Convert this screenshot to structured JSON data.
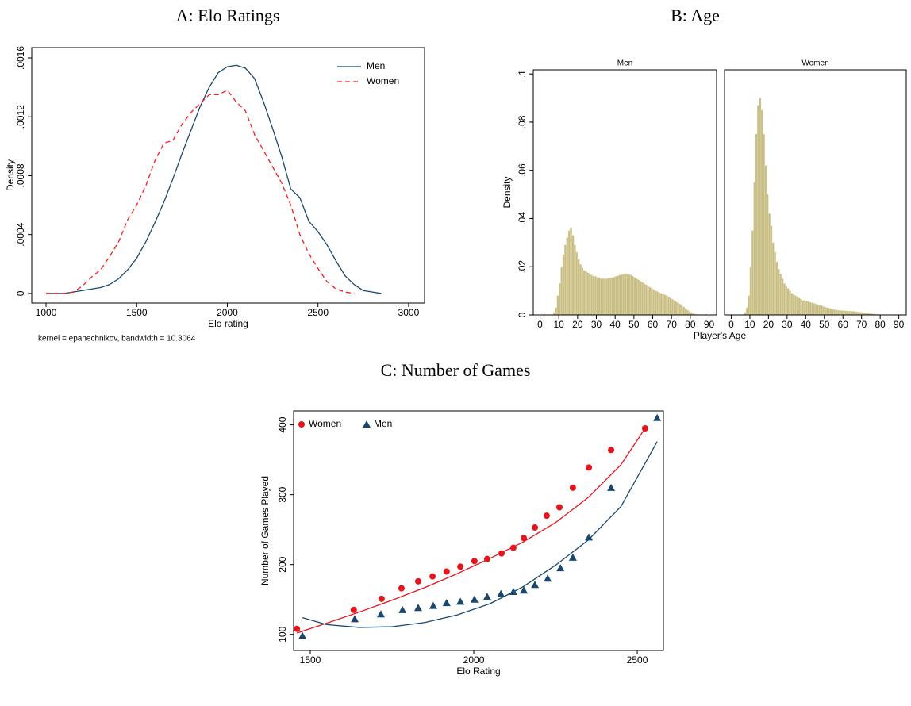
{
  "chart_data": [
    {
      "type": "line",
      "title": "A: Elo Ratings",
      "xlabel": "Elo rating",
      "ylabel": "Density",
      "note": "kernel = epanechnikov, bandwidth = 10.3064",
      "legend": "top-right",
      "xlim": [
        921,
        3088
      ],
      "xticks": [
        1000,
        1500,
        2000,
        2500,
        3000
      ],
      "ylim": [
        -6.5e-05,
        0.00167
      ],
      "yticks": [
        0,
        {
          "value": 0.0004,
          "label": ".0004"
        },
        {
          "value": 0.0008,
          "label": ".0008"
        },
        {
          "value": 0.0012,
          "label": ".0012"
        },
        {
          "value": 0.0016,
          "label": ".0016"
        }
      ],
      "x": [
        1000,
        1050,
        1100,
        1150,
        1200,
        1250,
        1300,
        1350,
        1400,
        1450,
        1500,
        1550,
        1600,
        1650,
        1700,
        1750,
        1800,
        1850,
        1900,
        1950,
        2000,
        2050,
        2100,
        2150,
        2200,
        2250,
        2300,
        2350,
        2400,
        2450,
        2500,
        2550,
        2600,
        2650,
        2700,
        2750,
        2800,
        2850
      ],
      "series": [
        {
          "name": "Men",
          "color": "#1a476f",
          "line_style": "solid",
          "values": [
            0,
            0,
            0,
            1e-05,
            2e-05,
            3e-05,
            4e-05,
            6e-05,
            0.0001,
            0.00016,
            0.00024,
            0.00035,
            0.00048,
            0.00062,
            0.00078,
            0.00095,
            0.00111,
            0.00127,
            0.0014,
            0.0015,
            0.00154,
            0.00155,
            0.00153,
            0.00146,
            0.0013,
            0.00112,
            0.00093,
            0.00071,
            0.00065,
            0.00049,
            0.00042,
            0.00033,
            0.00022,
            0.00012,
            6e-05,
            2e-05,
            1e-05,
            0
          ]
        },
        {
          "name": "Women",
          "color": "#ff1a1a",
          "line_style": "dashed",
          "values": [
            0,
            0,
            0,
            1e-05,
            5e-05,
            0.00011,
            0.00016,
            0.00025,
            0.00035,
            0.0005,
            0.0006,
            0.00073,
            0.0009,
            0.00102,
            0.00104,
            0.00115,
            0.00123,
            0.00129,
            0.00135,
            0.00135,
            0.00138,
            0.0013,
            0.00124,
            0.00108,
            0.00097,
            0.00086,
            0.00075,
            0.0006,
            0.0004,
            0.00027,
            0.00017,
            8e-05,
            3e-05,
            1e-05,
            0,
            null,
            null,
            null
          ]
        }
      ]
    },
    {
      "type": "histogram",
      "title": "B: Age",
      "xlabel": "Player's Age",
      "ylabel": "Density",
      "color": "#c8be86",
      "xlim": [
        -3.6,
        94
      ],
      "xticks": [
        0,
        10,
        20,
        30,
        40,
        50,
        60,
        70,
        80,
        90
      ],
      "ylim": [
        0,
        0.1017
      ],
      "yticks": [
        0,
        {
          "value": 0.02,
          "label": ".02"
        },
        {
          "value": 0.04,
          "label": ".04"
        },
        {
          "value": 0.06,
          "label": ".06"
        },
        {
          "value": 0.08,
          "label": ".08"
        },
        {
          "value": 0.1,
          "label": ".1"
        }
      ],
      "bins": [
        5,
        6,
        7,
        8,
        9,
        10,
        11,
        12,
        13,
        14,
        15,
        16,
        17,
        18,
        19,
        20,
        21,
        22,
        23,
        24,
        25,
        26,
        27,
        28,
        29,
        30,
        31,
        32,
        33,
        34,
        35,
        36,
        37,
        38,
        39,
        40,
        41,
        42,
        43,
        44,
        45,
        46,
        47,
        48,
        49,
        50,
        51,
        52,
        53,
        54,
        55,
        56,
        57,
        58,
        59,
        60,
        61,
        62,
        63,
        64,
        65,
        66,
        67,
        68,
        69,
        70,
        71,
        72,
        73,
        74,
        75,
        76,
        77,
        78,
        79,
        80,
        81,
        82,
        83,
        84,
        85
      ],
      "panels": [
        {
          "title": "Men",
          "values": [
            0,
            0,
            0.001,
            0.003,
            0.008,
            0.013,
            0.02,
            0.025,
            0.029,
            0.032,
            0.035,
            0.036,
            0.033,
            0.029,
            0.026,
            0.023,
            0.021,
            0.0195,
            0.0185,
            0.018,
            0.0175,
            0.017,
            0.0165,
            0.016,
            0.016,
            0.0155,
            0.0155,
            0.015,
            0.015,
            0.015,
            0.015,
            0.0152,
            0.0153,
            0.0155,
            0.0157,
            0.016,
            0.0162,
            0.0165,
            0.0167,
            0.017,
            0.0172,
            0.017,
            0.0168,
            0.0165,
            0.016,
            0.0155,
            0.015,
            0.0145,
            0.014,
            0.0135,
            0.013,
            0.0125,
            0.012,
            0.0115,
            0.011,
            0.0105,
            0.01,
            0.0097,
            0.0093,
            0.009,
            0.0087,
            0.0083,
            0.008,
            0.0075,
            0.007,
            0.0065,
            0.006,
            0.0055,
            0.005,
            0.0045,
            0.004,
            0.0033,
            0.0027,
            0.002,
            0.0015,
            0.001,
            0.0006,
            0.0003,
            0.0002,
            0.0001
          ]
        },
        {
          "title": "Women",
          "values": [
            0,
            0,
            0.001,
            0.003,
            0.008,
            0.02,
            0.035,
            0.055,
            0.075,
            0.087,
            0.09,
            0.085,
            0.075,
            0.062,
            0.05,
            0.042,
            0.037,
            0.03,
            0.026,
            0.022,
            0.019,
            0.017,
            0.015,
            0.013,
            0.012,
            0.011,
            0.01,
            0.009,
            0.0085,
            0.008,
            0.0075,
            0.007,
            0.0065,
            0.006,
            0.006,
            0.0057,
            0.0055,
            0.0052,
            0.005,
            0.0048,
            0.0045,
            0.0043,
            0.004,
            0.0038,
            0.0035,
            0.0032,
            0.003,
            0.0028,
            0.0026,
            0.0024,
            0.0022,
            0.002,
            0.0019,
            0.0018,
            0.0018,
            0.0017,
            0.0017,
            0.0016,
            0.0016,
            0.0015,
            0.0015,
            0.0014,
            0.0013,
            0.0012,
            0.0011,
            0.001,
            0.0009,
            0.0008,
            0.0007,
            0.0006,
            0.0005,
            0.0004,
            0.0003,
            0.0002,
            0.0002,
            0.0001,
            0.0001,
            0,
            0,
            0
          ]
        }
      ]
    },
    {
      "type": "scatter",
      "title": "C: Number of Games",
      "xlabel": "Elo Rating",
      "ylabel": "Number of Games Played",
      "legend": "top-left",
      "xlim": [
        1449,
        2580
      ],
      "xticks": [
        1500,
        2000,
        2500
      ],
      "ylim": [
        77,
        420
      ],
      "yticks": [
        100,
        200,
        300,
        400
      ],
      "series": [
        {
          "name": "Women",
          "color": "#e8141c",
          "marker": "circle",
          "x": [
            1459,
            1633,
            1718,
            1779,
            1830,
            1874,
            1917,
            1959,
            2002,
            2041,
            2085,
            2121,
            2153,
            2187,
            2223,
            2262,
            2303,
            2352,
            2420,
            2524
          ],
          "values": [
            108,
            135,
            151,
            166,
            176,
            183,
            190,
            197,
            205,
            208,
            216,
            224,
            238,
            253,
            270,
            282,
            310,
            339,
            364,
            395
          ],
          "fit": {
            "x": [
              1459,
              1550,
              1650,
              1750,
              1850,
              1950,
              2050,
              2150,
              2250,
              2350,
              2450,
              2524
            ],
            "values": [
              102,
              116,
              132,
              149,
              167,
              187,
              209,
              232,
              260,
              296,
              343,
              395
            ]
          }
        },
        {
          "name": "Men",
          "color": "#1a476f",
          "marker": "triangle",
          "x": [
            1476,
            1636,
            1716,
            1782,
            1830,
            1876,
            1917,
            1959,
            2002,
            2041,
            2083,
            2121,
            2153,
            2187,
            2226,
            2265,
            2303,
            2352,
            2420,
            2561
          ],
          "values": [
            98,
            122,
            129,
            135,
            138,
            141,
            145,
            147,
            150,
            154,
            158,
            161,
            163,
            171,
            180,
            195,
            210,
            239,
            310,
            410
          ],
          "fit": {
            "x": [
              1476,
              1550,
              1650,
              1750,
              1850,
              1950,
              2050,
              2150,
              2250,
              2350,
              2450,
              2561
            ],
            "values": [
              124,
              114,
              110,
              111,
              117,
              128,
              144,
              168,
              199,
              235,
              283,
              376
            ]
          }
        }
      ]
    }
  ]
}
